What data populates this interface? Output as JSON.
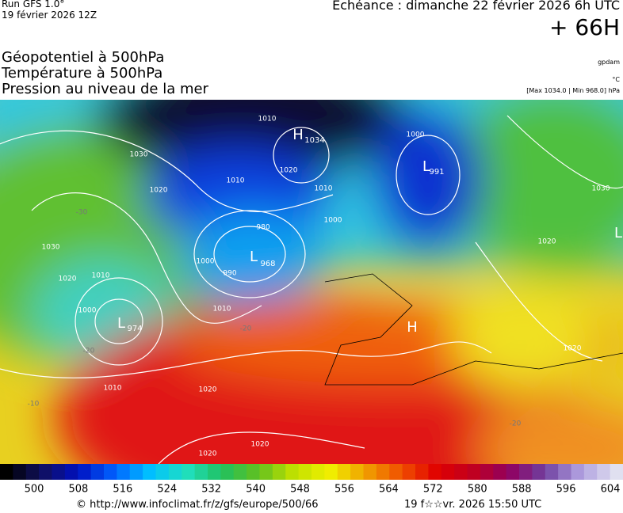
{
  "header": {
    "run": "Run GFS 1.0°",
    "run_date": "19 février 2026 12Z",
    "forecast": "Echéance : dimanche 22 février 2026 6h UTC",
    "lead": "+ 66H"
  },
  "layers": [
    "Géopotentiel à 500hPa",
    "Température à 500hPa",
    "Pression au niveau de la mer"
  ],
  "units": [
    "gpdam",
    "°C",
    "[Max 1034.0 | Min 968.0] hPa"
  ],
  "centers": [
    {
      "type": "H",
      "value": 1034
    },
    {
      "type": "L",
      "value": 991
    },
    {
      "type": "L",
      "value": 968
    },
    {
      "type": "L",
      "value": 974
    },
    {
      "type": "L"
    },
    {
      "type": "H"
    }
  ],
  "isobar_labels": [
    1010,
    1030,
    1020,
    1010,
    1020,
    1010,
    1000,
    980,
    1000,
    990,
    1030,
    1020,
    1010,
    1000,
    1010,
    1010,
    1020,
    1020,
    1020,
    1000,
    1030,
    1020,
    1020
  ],
  "temperature_labels": [
    -30,
    -20,
    -20,
    -10,
    -20
  ],
  "colorbar": {
    "ticks": [
      500,
      508,
      516,
      524,
      532,
      540,
      548,
      556,
      564,
      572,
      580,
      588,
      596,
      604
    ]
  },
  "footer": {
    "source": "© http://www.infoclimat.fr/z/gfs/europe/500/66",
    "generated": "19 f☆☆vr. 2026 15:50 UTC"
  }
}
